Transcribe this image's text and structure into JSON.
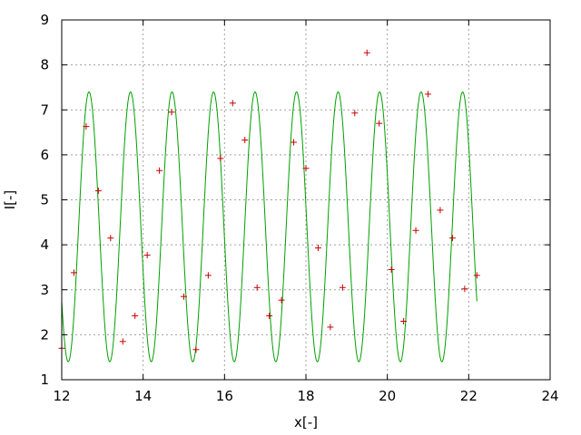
{
  "chart_data": {
    "type": "scatter",
    "xlabel": "x[-]",
    "ylabel": "I[-]",
    "xlim": [
      12,
      24
    ],
    "ylim": [
      1,
      9
    ],
    "xticks": [
      "12",
      "14",
      "16",
      "18",
      "20",
      "22",
      "24"
    ],
    "yticks": [
      "1",
      "2",
      "3",
      "4",
      "5",
      "6",
      "7",
      "8",
      "9"
    ],
    "grid": true,
    "legend": "none",
    "series": [
      {
        "kind": "points",
        "marker": "plus",
        "color": "#cc0000",
        "x": [
          12.0,
          12.3,
          12.6,
          12.9,
          13.2,
          13.5,
          13.8,
          14.1,
          14.4,
          14.7,
          15.0,
          15.3,
          15.6,
          15.9,
          16.2,
          16.5,
          16.8,
          17.1,
          17.4,
          17.7,
          18.0,
          18.3,
          18.6,
          18.9,
          19.2,
          19.5,
          19.8,
          20.1,
          20.4,
          20.7,
          21.0,
          21.3,
          21.6,
          21.9,
          22.2
        ],
        "y": [
          1.7,
          3.38,
          6.63,
          5.2,
          4.15,
          1.85,
          2.42,
          3.77,
          5.65,
          6.95,
          2.85,
          1.67,
          3.32,
          5.92,
          7.15,
          6.33,
          3.05,
          2.42,
          2.77,
          6.28,
          5.7,
          3.93,
          2.17,
          3.05,
          6.93,
          8.27,
          6.7,
          3.45,
          2.3,
          4.32,
          7.35,
          4.77,
          4.15,
          3.02,
          3.32
        ]
      },
      {
        "kind": "line",
        "color": "#00a000",
        "function": "sinusoid",
        "x_range": [
          12.0,
          22.2
        ],
        "mean": 4.4,
        "amplitude": 3.0,
        "period": 1.02,
        "peak_x": 12.67
      }
    ]
  }
}
